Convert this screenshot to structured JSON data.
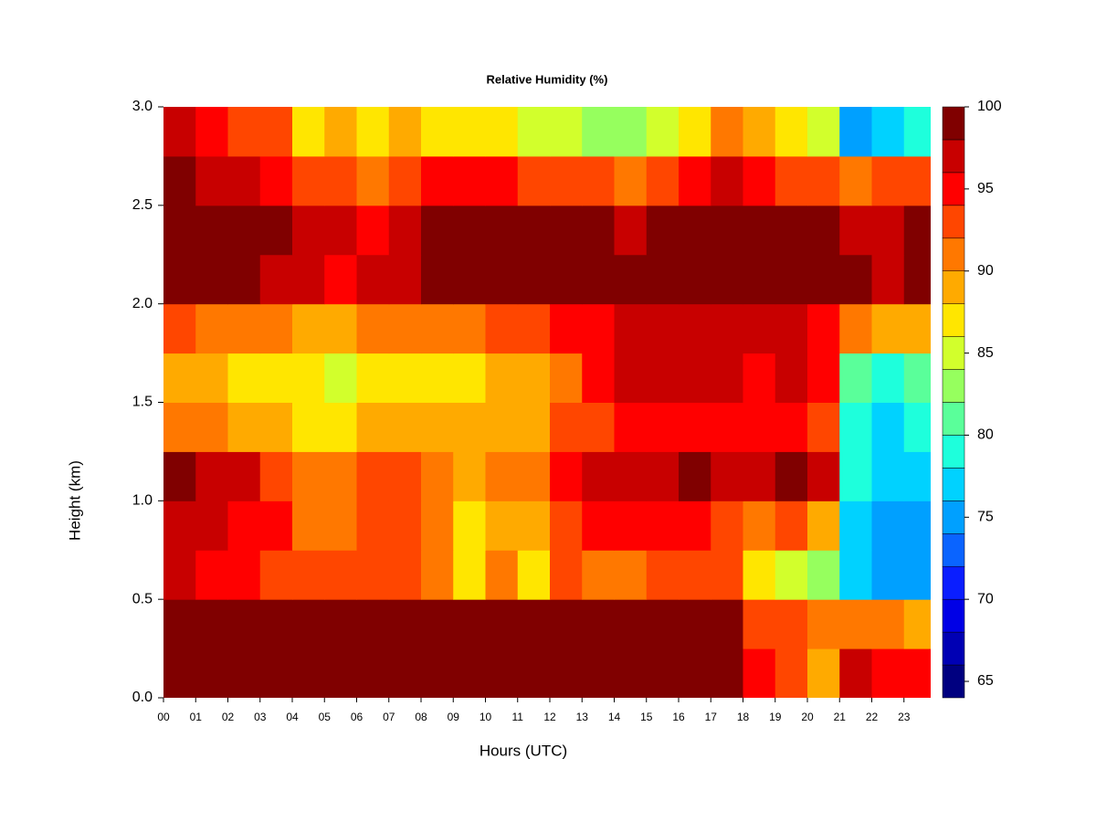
{
  "chart_data": {
    "type": "heatmap",
    "title": "Relative Humidity (%)",
    "x_label": "Hours (UTC)",
    "y_label": "Height (km)",
    "x": [
      0.5,
      1.5,
      2.5,
      3.5,
      4.5,
      5.5,
      6.5,
      7.5,
      8.5,
      9.5,
      10.5,
      11.5,
      12.5,
      13.5,
      14.5,
      15.5,
      16.5,
      17.5,
      18.5,
      19.5,
      20.5,
      21.5,
      22.5,
      23.5
    ],
    "y": [
      0.125,
      0.375,
      0.625,
      0.875,
      1.125,
      1.375,
      1.625,
      1.875,
      2.125,
      2.375,
      2.625,
      2.875
    ],
    "z": [
      [
        99,
        99,
        99,
        99,
        99,
        99,
        99,
        99,
        99,
        99,
        99,
        99,
        99,
        99,
        99,
        99,
        99,
        99,
        94,
        93,
        88,
        96,
        95,
        95
      ],
      [
        99,
        99,
        99,
        99,
        99,
        99,
        99,
        99,
        99,
        99,
        99,
        99,
        99,
        99,
        99,
        99,
        99,
        98,
        93,
        93,
        91,
        90,
        90,
        89
      ],
      [
        96,
        95,
        94,
        93,
        92,
        92,
        93,
        92,
        91,
        87,
        90,
        87,
        92,
        91,
        91,
        92,
        93,
        92,
        86,
        85,
        82,
        76,
        74,
        75
      ],
      [
        97,
        96,
        95,
        94,
        91,
        90,
        93,
        92,
        90,
        86,
        89,
        88,
        93,
        94,
        95,
        95,
        95,
        93,
        91,
        93,
        88,
        77,
        74,
        75
      ],
      [
        98,
        97,
        96,
        93,
        91,
        90,
        92,
        92,
        91,
        89,
        91,
        90,
        95,
        97,
        97,
        97,
        98,
        96,
        96,
        98,
        96,
        78,
        76,
        77
      ],
      [
        91,
        90,
        89,
        88,
        87,
        86,
        88,
        89,
        88,
        88,
        89,
        89,
        92,
        93,
        95,
        95,
        95,
        95,
        94,
        95,
        93,
        79,
        76,
        78
      ],
      [
        89,
        88,
        87,
        87,
        86,
        85,
        86,
        87,
        87,
        86,
        88,
        88,
        91,
        94,
        96,
        97,
        96,
        96,
        95,
        96,
        94,
        80,
        78,
        80
      ],
      [
        92,
        91,
        90,
        90,
        89,
        89,
        90,
        91,
        91,
        90,
        92,
        93,
        94,
        95,
        97,
        97,
        97,
        97,
        96,
        96,
        95,
        90,
        88,
        89
      ],
      [
        98,
        98,
        98,
        97,
        96,
        95,
        96,
        97,
        98,
        98,
        99,
        99,
        99,
        99,
        99,
        99,
        99,
        99,
        99,
        99,
        99,
        98,
        97,
        98
      ],
      [
        99,
        99,
        98,
        98,
        97,
        96,
        95,
        97,
        98,
        98,
        98,
        98,
        99,
        98,
        97,
        98,
        99,
        99,
        98,
        98,
        98,
        97,
        97,
        98
      ],
      [
        98,
        97,
        96,
        95,
        93,
        92,
        90,
        93,
        94,
        95,
        94,
        93,
        93,
        92,
        91,
        93,
        95,
        96,
        95,
        93,
        93,
        91,
        92,
        93
      ],
      [
        96,
        94,
        93,
        92,
        86,
        88,
        86,
        88,
        87,
        86,
        87,
        85,
        85,
        83,
        82,
        84,
        86,
        90,
        88,
        86,
        85,
        74,
        76,
        78
      ]
    ],
    "xlim": [
      0,
      23.83
    ],
    "ylim": [
      0,
      3
    ],
    "xticks": [
      {
        "value": 0,
        "label": "00"
      },
      {
        "value": 1,
        "label": "01"
      },
      {
        "value": 2,
        "label": "02"
      },
      {
        "value": 3,
        "label": "03"
      },
      {
        "value": 4,
        "label": "04"
      },
      {
        "value": 5,
        "label": "05"
      },
      {
        "value": 6,
        "label": "06"
      },
      {
        "value": 7,
        "label": "07"
      },
      {
        "value": 8,
        "label": "08"
      },
      {
        "value": 9,
        "label": "09"
      },
      {
        "value": 10,
        "label": "10"
      },
      {
        "value": 11,
        "label": "11"
      },
      {
        "value": 12,
        "label": "12"
      },
      {
        "value": 13,
        "label": "13"
      },
      {
        "value": 14,
        "label": "14"
      },
      {
        "value": 15,
        "label": "15"
      },
      {
        "value": 16,
        "label": "16"
      },
      {
        "value": 17,
        "label": "17"
      },
      {
        "value": 18,
        "label": "18"
      },
      {
        "value": 19,
        "label": "19"
      },
      {
        "value": 20,
        "label": "20"
      },
      {
        "value": 21,
        "label": "21"
      },
      {
        "value": 22,
        "label": "22"
      },
      {
        "value": 23,
        "label": "23"
      }
    ],
    "yticks": [
      {
        "value": 0,
        "label": "0.0"
      },
      0.5,
      {
        "value": 1,
        "label": "1.0"
      },
      1.5,
      {
        "value": 2,
        "label": "2.0"
      },
      2.5,
      {
        "value": 3,
        "label": "3.0"
      }
    ],
    "levels": [
      64,
      66,
      68,
      70,
      72,
      74,
      76,
      78,
      80,
      82,
      84,
      86,
      88,
      90,
      92,
      94,
      96,
      98,
      100
    ],
    "colors": [
      "#000080",
      "#0000b4",
      "#0000e6",
      "#0a1eff",
      "#0a64ff",
      "#00a0ff",
      "#00d2ff",
      "#1effdc",
      "#5aff9a",
      "#96ff5e",
      "#d2ff2c",
      "#ffe600",
      "#ffaa00",
      "#ff7800",
      "#ff4600",
      "#ff0000",
      "#c80000",
      "#800000"
    ],
    "zlim": [
      64,
      100
    ],
    "zticks": [
      65,
      70,
      75,
      80,
      85,
      90,
      95,
      100
    ]
  }
}
